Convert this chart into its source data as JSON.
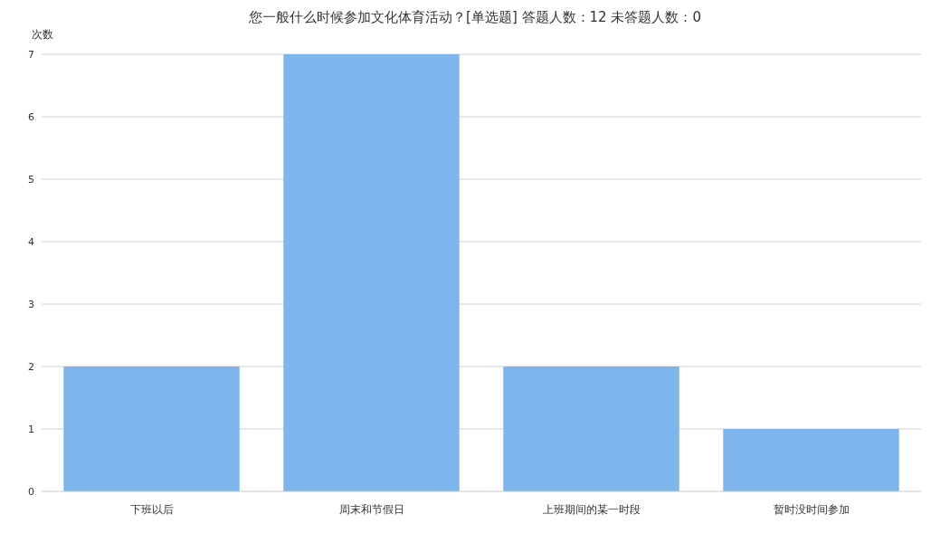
{
  "chart_data": {
    "type": "bar",
    "title": "您一般什么时候参加文化体育活动？[单选题]  答题人数：12  未答题人数：0",
    "ylabel": "次数",
    "categories": [
      "下班以后",
      "周末和节假日",
      "上班期间的某一时段",
      "暂时没时间参加"
    ],
    "values": [
      2,
      7,
      2,
      1
    ],
    "color": "#7eb5ec",
    "ylim": [
      0,
      7
    ],
    "yticks": [
      0,
      1,
      2,
      3,
      4,
      5,
      6,
      7
    ],
    "grid": "y"
  }
}
